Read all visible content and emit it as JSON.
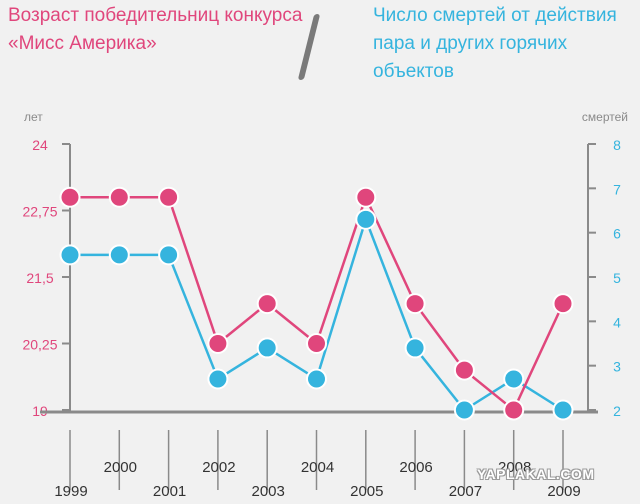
{
  "header": {
    "left_title": "Возраст победительниц конкурса «Мисс Америка»",
    "right_title": "Число смертей от действия пара и других горячих объектов",
    "separator": "/"
  },
  "watermark": "YAPLAKAL.COM",
  "colors": {
    "left_series": "#e0467c",
    "right_series": "#35b4de",
    "axis": "#8a8a8a",
    "background": "#f1f1f1"
  },
  "chart_data": {
    "type": "line",
    "x": [
      1999,
      2000,
      2001,
      2002,
      2003,
      2004,
      2005,
      2006,
      2007,
      2008,
      2009
    ],
    "x_tick_labels": [
      "1999",
      "2000",
      "2001",
      "2002",
      "2003",
      "2004",
      "2005",
      "2006",
      "2007",
      "2008",
      "2009"
    ],
    "left_axis": {
      "label": "лет",
      "ylim": [
        19,
        24
      ],
      "ticks": [
        "24",
        "22,75",
        "21,5",
        "20,25",
        "19"
      ],
      "tick_values": [
        24,
        22.75,
        21.5,
        20.25,
        19
      ]
    },
    "right_axis": {
      "label": "смертей",
      "ylim": [
        2,
        8
      ],
      "ticks": [
        "8",
        "7",
        "6",
        "5",
        "4",
        "3",
        "2"
      ],
      "tick_values": [
        8,
        7,
        6,
        5,
        4,
        3,
        2
      ]
    },
    "series": [
      {
        "name": "Возраст победительниц конкурса «Мисс Америка»",
        "axis": "left",
        "color": "#e0467c",
        "values": [
          23,
          23,
          23,
          20.25,
          21,
          20.25,
          23,
          21,
          19.75,
          19,
          21
        ]
      },
      {
        "name": "Число смертей от действия пара и других горячих объектов",
        "axis": "right",
        "color": "#35b4de",
        "values": [
          5.5,
          5.5,
          5.5,
          2.7,
          3.4,
          2.7,
          6.3,
          3.4,
          2,
          2.7,
          2
        ]
      }
    ],
    "grid": false
  }
}
